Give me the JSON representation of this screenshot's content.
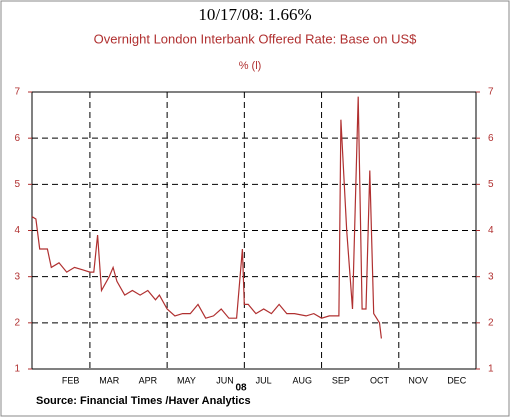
{
  "chart_data": {
    "type": "line",
    "title": "10/17/08:  1.66%",
    "subtitle": "Overnight London Interbank Offered Rate: Base on US$",
    "unit_label": "%   (l)",
    "year_label": "08",
    "source": "Source:  Financial Times /Haver Analytics",
    "categories": [
      "FEB",
      "MAR",
      "APR",
      "MAY",
      "JUN",
      "JUL",
      "AUG",
      "SEP",
      "OCT",
      "NOV",
      "DEC"
    ],
    "category_x": [
      2.5,
      3.5,
      4.5,
      5.5,
      6.5,
      7.5,
      8.5,
      9.5,
      10.5,
      11.5,
      12.5
    ],
    "xlim": [
      1.5,
      13
    ],
    "xticks": [
      3,
      5,
      7,
      9,
      11
    ],
    "ylim": [
      1,
      7
    ],
    "yticks": [
      1,
      2,
      3,
      4,
      5,
      6,
      7
    ],
    "grid": true,
    "color": "#b03030",
    "x": [
      1.5,
      1.6,
      1.7,
      1.9,
      2.0,
      2.2,
      2.4,
      2.6,
      2.8,
      3.0,
      3.1,
      3.2,
      3.3,
      3.5,
      3.6,
      3.7,
      3.9,
      4.1,
      4.3,
      4.5,
      4.7,
      4.8,
      5.0,
      5.2,
      5.4,
      5.6,
      5.8,
      6.0,
      6.2,
      6.4,
      6.6,
      6.8,
      6.95,
      7.0,
      7.1,
      7.3,
      7.5,
      7.7,
      7.9,
      8.1,
      8.3,
      8.6,
      8.8,
      9.0,
      9.2,
      9.45,
      9.5,
      9.65,
      9.8,
      9.95,
      10.05,
      10.15,
      10.25,
      10.35,
      10.5,
      10.55
    ],
    "values": [
      4.3,
      4.25,
      3.6,
      3.6,
      3.2,
      3.3,
      3.1,
      3.2,
      3.15,
      3.1,
      3.1,
      3.9,
      2.7,
      3.0,
      3.2,
      2.9,
      2.6,
      2.7,
      2.6,
      2.7,
      2.5,
      2.6,
      2.3,
      2.15,
      2.2,
      2.2,
      2.4,
      2.1,
      2.15,
      2.3,
      2.1,
      2.1,
      3.6,
      2.4,
      2.4,
      2.2,
      2.3,
      2.2,
      2.4,
      2.2,
      2.2,
      2.15,
      2.2,
      2.1,
      2.15,
      2.15,
      6.4,
      4.0,
      2.3,
      6.9,
      2.3,
      2.3,
      5.3,
      2.2,
      2.0,
      1.66
    ]
  }
}
